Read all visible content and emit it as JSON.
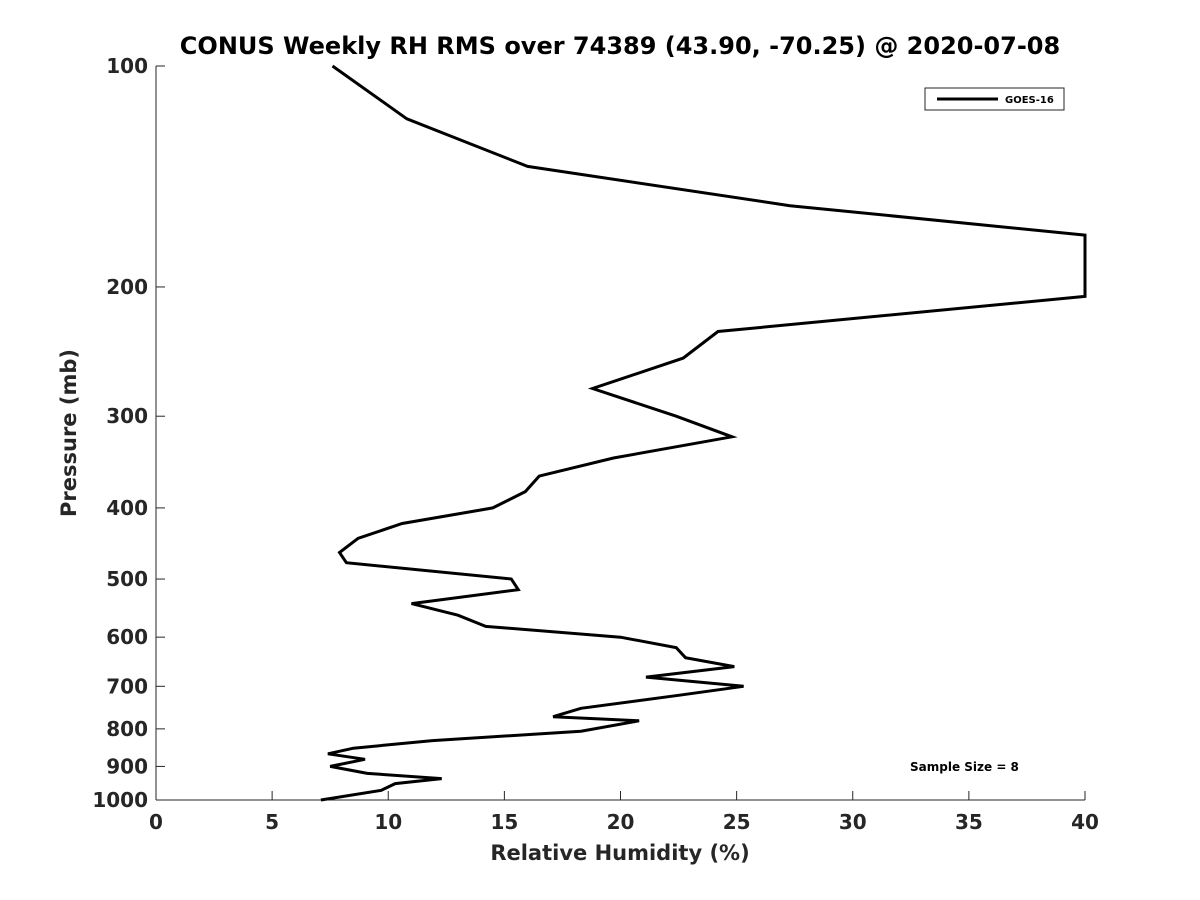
{
  "chart_data": {
    "type": "line",
    "title": "CONUS Weekly RH RMS over 74389 (43.90, -70.25) @ 2020-07-08",
    "xlabel": "Relative Humidity (%)",
    "ylabel": "Pressure (mb)",
    "xlim": [
      0,
      40
    ],
    "ylim": [
      100,
      1000
    ],
    "y_scale": "log",
    "y_reversed": true,
    "x_ticks": [
      "0",
      "5",
      "10",
      "15",
      "20",
      "25",
      "30",
      "35",
      "40"
    ],
    "y_ticks": [
      "100",
      "200",
      "300",
      "400",
      "500",
      "600",
      "700",
      "800",
      "900",
      "1000"
    ],
    "legend_position": "top-right",
    "annotation": "Sample Size = 8",
    "grid": false,
    "series": [
      {
        "name": "GOES-16",
        "color": "#000000",
        "points": [
          [
            7.6,
            100
          ],
          [
            10.8,
            118
          ],
          [
            16.0,
            137
          ],
          [
            27.3,
            155
          ],
          [
            40.0,
            170
          ],
          [
            40.0,
            206
          ],
          [
            24.2,
            230
          ],
          [
            22.7,
            250
          ],
          [
            18.8,
            275
          ],
          [
            22.4,
            300
          ],
          [
            24.8,
            320
          ],
          [
            19.7,
            342
          ],
          [
            16.5,
            362
          ],
          [
            15.9,
            380
          ],
          [
            14.5,
            400
          ],
          [
            10.6,
            420
          ],
          [
            8.7,
            440
          ],
          [
            7.9,
            460
          ],
          [
            8.2,
            475
          ],
          [
            15.3,
            500
          ],
          [
            15.6,
            517
          ],
          [
            11.0,
            540
          ],
          [
            13.0,
            560
          ],
          [
            14.2,
            580
          ],
          [
            20.0,
            600
          ],
          [
            22.4,
            620
          ],
          [
            22.8,
            640
          ],
          [
            24.9,
            658
          ],
          [
            21.1,
            680
          ],
          [
            25.3,
            700
          ],
          [
            22.5,
            720
          ],
          [
            18.3,
            750
          ],
          [
            17.1,
            770
          ],
          [
            20.8,
            780
          ],
          [
            18.3,
            806
          ],
          [
            11.9,
            830
          ],
          [
            8.5,
            850
          ],
          [
            7.4,
            865
          ],
          [
            9.0,
            880
          ],
          [
            7.5,
            900
          ],
          [
            9.1,
            920
          ],
          [
            12.3,
            935
          ],
          [
            10.3,
            950
          ],
          [
            9.7,
            970
          ],
          [
            7.1,
            1000
          ]
        ]
      }
    ]
  }
}
